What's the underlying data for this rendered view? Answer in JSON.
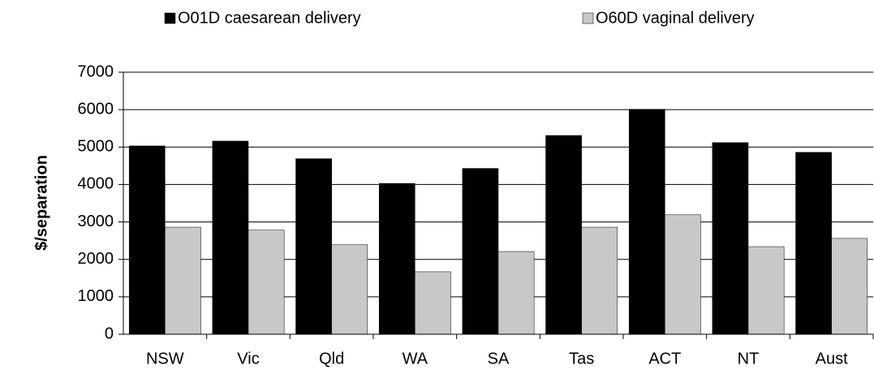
{
  "chart_data": {
    "type": "bar",
    "y_label": "$/separation",
    "categories": [
      "NSW",
      "Vic",
      "Qld",
      "WA",
      "SA",
      "Tas",
      "ACT",
      "NT",
      "Aust"
    ],
    "series": [
      {
        "name": "O01D caesarean delivery",
        "color": "#000000",
        "values": [
          5030,
          5160,
          4690,
          4030,
          4430,
          5310,
          6010,
          5120,
          4860
        ]
      },
      {
        "name": "O60D vaginal delivery",
        "color": "#c8c8c8",
        "values": [
          2860,
          2780,
          2390,
          1670,
          2210,
          2860,
          3190,
          2340,
          2560
        ]
      }
    ],
    "ylim": [
      0,
      7000
    ],
    "yticks": [
      0,
      1000,
      2000,
      3000,
      4000,
      5000,
      6000,
      7000
    ],
    "grid": true,
    "legend": "top"
  }
}
